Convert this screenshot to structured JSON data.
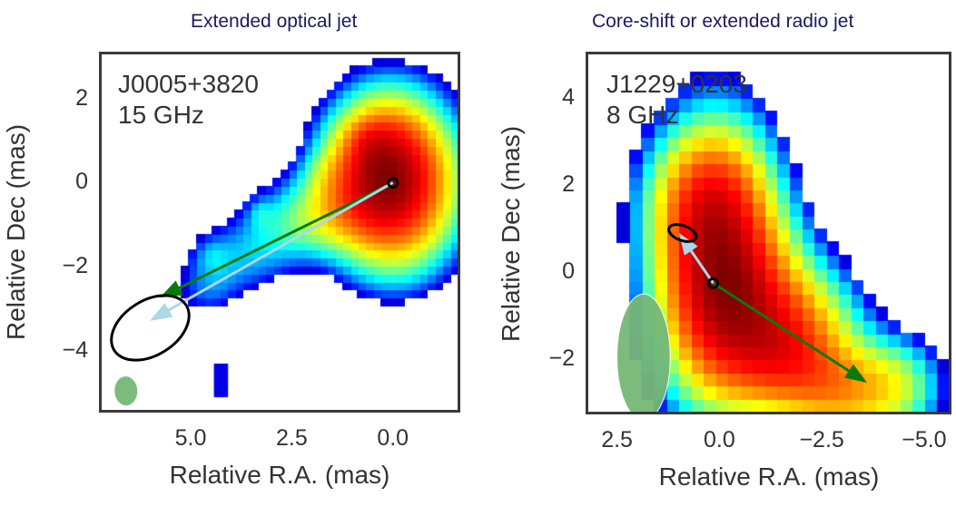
{
  "chart_data": [
    {
      "type": "heatmap",
      "title": "Extended optical jet",
      "annotation": [
        "J0005+3820",
        "15 GHz"
      ],
      "xlabel": "Relative R.A. (mas)",
      "ylabel": "Relative Dec (mas)",
      "xlim": [
        7.2,
        -1.6
      ],
      "ylim": [
        -5.4,
        3.05
      ],
      "xticks": [
        {
          "value": 5.0,
          "label": "5.0"
        },
        {
          "value": 2.5,
          "label": "2.5"
        },
        {
          "value": 0.0,
          "label": "0.0"
        }
      ],
      "yticks": [
        {
          "value": 2,
          "label": "2"
        },
        {
          "value": 0,
          "label": "0"
        },
        {
          "value": -2,
          "label": "−2"
        },
        {
          "value": -4,
          "label": "−4"
        }
      ],
      "colormap": "jet",
      "pixel_size_mas": 0.19,
      "threshold": 0.035,
      "components": [
        {
          "x": 0.0,
          "y": 0.0,
          "sx": 0.9,
          "sy": 1.15,
          "amp": 1.0
        },
        {
          "x": 0.45,
          "y": 0.55,
          "sx": 0.7,
          "sy": 0.8,
          "amp": 0.35
        },
        {
          "x": 1.4,
          "y": -0.6,
          "sx": 0.9,
          "sy": 0.6,
          "amp": 0.22
        },
        {
          "x": 2.6,
          "y": -1.1,
          "sx": 0.9,
          "sy": 0.55,
          "amp": 0.1
        },
        {
          "x": 3.7,
          "y": -1.8,
          "sx": 0.8,
          "sy": 0.55,
          "amp": 0.08
        },
        {
          "x": 4.6,
          "y": -2.5,
          "sx": 0.55,
          "sy": 0.5,
          "amp": 0.07
        },
        {
          "x": 3.3,
          "y": -0.7,
          "sx": 0.2,
          "sy": 0.25,
          "amp": 0.05
        },
        {
          "x": 4.5,
          "y": -1.7,
          "sx": 0.3,
          "sy": 0.3,
          "amp": 0.05
        },
        {
          "x": 1.7,
          "y": 0.2,
          "sx": 0.35,
          "sy": 0.45,
          "amp": 0.06
        },
        {
          "x": 0.6,
          "y": 1.0,
          "sx": 0.35,
          "sy": 0.3,
          "amp": 0.1
        }
      ],
      "island": {
        "x": 4.25,
        "y": -4.7,
        "w": 0.35,
        "h": 0.8
      },
      "core_marker": {
        "x": 0.0,
        "y": 0.0
      },
      "arrows": [
        {
          "name": "radio-jet-arrow",
          "color": "#0a7a0a",
          "from": [
            0.0,
            0.0
          ],
          "to": [
            5.7,
            -2.7
          ]
        },
        {
          "name": "optical-offset-arrow",
          "color": "#add8e6",
          "from": [
            0.0,
            0.0
          ],
          "to": [
            5.95,
            -3.25
          ]
        }
      ],
      "error_ellipse": {
        "x": 6.0,
        "y": -3.45,
        "a": 1.05,
        "b": 0.65,
        "angle_deg": -32,
        "color": "#000000"
      },
      "beam": {
        "x": 6.6,
        "y": -4.95,
        "a": 0.37,
        "b": 0.28,
        "angle_deg": 88,
        "color": "#76b876"
      }
    },
    {
      "type": "heatmap",
      "title": "Core-shift or extended radio jet",
      "annotation": [
        "J1229+0203",
        "8 GHz"
      ],
      "xlabel": "Relative R.A. (mas)",
      "ylabel": "Relative Dec (mas)",
      "xlim": [
        3.2,
        -5.6
      ],
      "ylim": [
        -3.2,
        5.0
      ],
      "xticks": [
        {
          "value": 2.5,
          "label": "2.5"
        },
        {
          "value": 0.0,
          "label": "0.0"
        },
        {
          "value": -2.5,
          "label": "−2.5"
        },
        {
          "value": -5.0,
          "label": "−5.0"
        }
      ],
      "yticks": [
        {
          "value": 4,
          "label": "4"
        },
        {
          "value": 2,
          "label": "2"
        },
        {
          "value": 0,
          "label": "0"
        },
        {
          "value": -2,
          "label": "−2"
        }
      ],
      "colormap": "jet",
      "pixel_size_mas": 0.3,
      "threshold": 0.055,
      "components": [
        {
          "x": 0.1,
          "y": 0.2,
          "sx": 0.95,
          "sy": 1.9,
          "amp": 1.0
        },
        {
          "x": -0.9,
          "y": -0.8,
          "sx": 1.0,
          "sy": 1.2,
          "amp": 0.45
        },
        {
          "x": -1.6,
          "y": -2.0,
          "sx": 0.9,
          "sy": 0.8,
          "amp": 0.4
        },
        {
          "x": -3.0,
          "y": -2.7,
          "sx": 1.0,
          "sy": 0.8,
          "amp": 0.45
        },
        {
          "x": -4.4,
          "y": -2.6,
          "sx": 0.7,
          "sy": 0.7,
          "amp": 0.2
        },
        {
          "x": 0.4,
          "y": 1.8,
          "sx": 0.9,
          "sy": 0.9,
          "amp": 0.25
        },
        {
          "x": -2.2,
          "y": -1.0,
          "sx": 0.9,
          "sy": 0.8,
          "amp": 0.2
        }
      ],
      "core_marker": {
        "x": 0.15,
        "y": -0.25
      },
      "arrows": [
        {
          "name": "radio-jet-arrow",
          "color": "#0a7a0a",
          "from": [
            0.15,
            -0.25
          ],
          "to": [
            -3.55,
            -2.5
          ]
        },
        {
          "name": "optical-offset-arrow",
          "color": "#add8e6",
          "from": [
            0.15,
            -0.25
          ],
          "to": [
            0.95,
            0.85
          ]
        }
      ],
      "error_ellipse": {
        "x": 0.9,
        "y": 0.9,
        "a": 0.35,
        "b": 0.17,
        "angle_deg": 20,
        "color": "#000000"
      },
      "beam": {
        "x": 1.85,
        "y": -1.95,
        "a": 0.65,
        "b": 1.45,
        "angle_deg": 0,
        "color": "#76b876"
      }
    }
  ]
}
